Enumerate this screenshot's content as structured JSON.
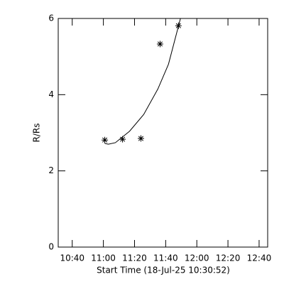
{
  "chart_data": {
    "type": "scatter",
    "x_label": "Start Time (18-Jul-25 10:30:52)",
    "y_label": "R/Rs",
    "xlim": [
      631,
      765.5
    ],
    "ylim": [
      0,
      6
    ],
    "xticks": [
      {
        "value": 640,
        "label": "10:40"
      },
      {
        "value": 660,
        "label": "11:00"
      },
      {
        "value": 680,
        "label": "11:20"
      },
      {
        "value": 700,
        "label": "11:40"
      },
      {
        "value": 720,
        "label": "12:00"
      },
      {
        "value": 740,
        "label": "12:20"
      },
      {
        "value": 760,
        "label": "12:40"
      }
    ],
    "yticks": [
      0,
      2,
      4,
      6
    ],
    "color": "#000000",
    "points": {
      "x": [
        660.9,
        672.3,
        684.1,
        696.4,
        708.2
      ],
      "y": [
        2.81,
        2.83,
        2.85,
        5.33,
        5.81
      ]
    },
    "curve": {
      "x": [
        660.9,
        663.2,
        667.7,
        676.8,
        685.9,
        695,
        701.8,
        709.5
      ],
      "y": [
        2.72,
        2.7,
        2.74,
        3.04,
        3.48,
        4.15,
        4.8,
        6.0
      ]
    }
  }
}
